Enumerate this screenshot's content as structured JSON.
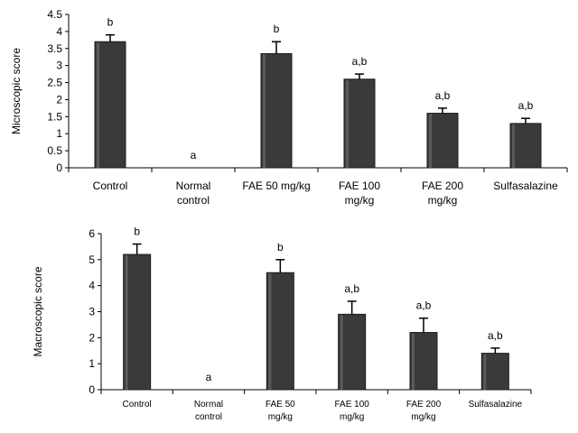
{
  "chart_data": [
    {
      "type": "bar",
      "ylabel": "Microscopic score",
      "ylim": [
        0,
        4.5
      ],
      "yticks": [
        "0",
        "0.5",
        "1",
        "1.5",
        "2",
        "2.5",
        "3",
        "3.5",
        "4",
        "4.5"
      ],
      "categories": [
        [
          "Control"
        ],
        [
          "Normal",
          "control"
        ],
        [
          "FAE 50 mg/kg"
        ],
        [
          "FAE 100",
          "mg/kg"
        ],
        [
          "FAE 200",
          "mg/kg"
        ],
        [
          "Sulfasalazine"
        ]
      ],
      "values": [
        3.7,
        0,
        3.35,
        2.6,
        1.6,
        1.3
      ],
      "errors": [
        0.2,
        0,
        0.35,
        0.15,
        0.15,
        0.15
      ],
      "annotations": [
        "b",
        "a",
        "b",
        "a,b",
        "a,b",
        "a,b"
      ],
      "bar_color": "#3a3a3a"
    },
    {
      "type": "bar",
      "ylabel": "Macroscopic score",
      "ylim": [
        0,
        6
      ],
      "yticks": [
        "0",
        "1",
        "2",
        "3",
        "4",
        "5",
        "6"
      ],
      "categories": [
        [
          "Control"
        ],
        [
          "Normal",
          "control"
        ],
        [
          "FAE 50",
          "mg/kg"
        ],
        [
          "FAE 100",
          "mg/kg"
        ],
        [
          "FAE 200",
          "mg/kg"
        ],
        [
          "Sulfasalazine"
        ]
      ],
      "values": [
        5.2,
        0,
        4.5,
        2.9,
        2.2,
        1.4
      ],
      "errors": [
        0.4,
        0,
        0.5,
        0.5,
        0.55,
        0.2
      ],
      "annotations": [
        "b",
        "a",
        "b",
        "a,b",
        "a,b",
        "a,b"
      ],
      "bar_color": "#3a3a3a"
    }
  ]
}
